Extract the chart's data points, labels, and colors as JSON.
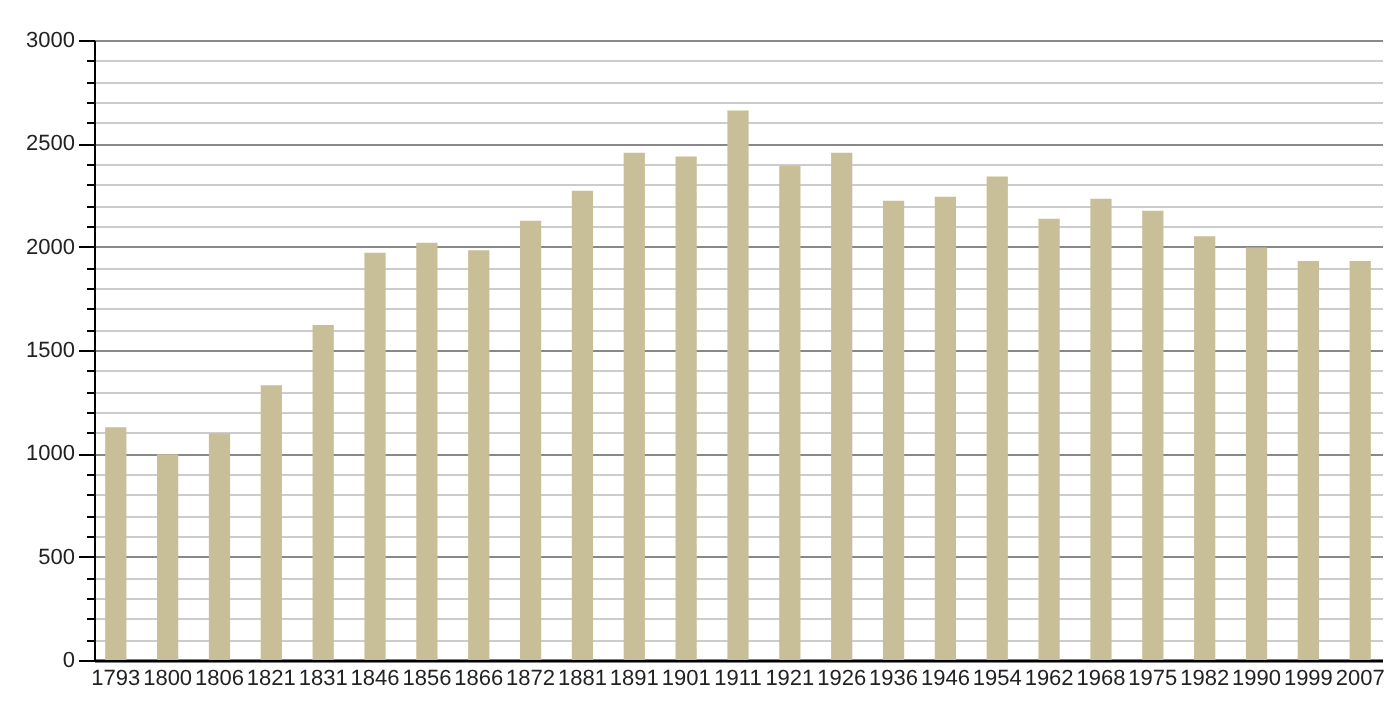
{
  "chart_data": {
    "type": "bar",
    "categories": [
      "1793",
      "1800",
      "1806",
      "1821",
      "1831",
      "1846",
      "1856",
      "1866",
      "1872",
      "1881",
      "1891",
      "1901",
      "1911",
      "1921",
      "1926",
      "1936",
      "1946",
      "1954",
      "1962",
      "1968",
      "1975",
      "1982",
      "1990",
      "1999",
      "2007"
    ],
    "values": [
      1126,
      995,
      1097,
      1330,
      1621,
      1970,
      2019,
      1983,
      2125,
      2271,
      2455,
      2436,
      2659,
      2391,
      2455,
      2222,
      2242,
      2339,
      2135,
      2232,
      2174,
      2051,
      1996,
      1931,
      1931
    ],
    "color": "#c8bf98",
    "ylim": [
      0,
      3000
    ],
    "yticks": [
      0,
      {
        "value": 100,
        "label": null
      },
      {
        "value": 200,
        "label": null
      },
      {
        "value": 300,
        "label": null
      },
      {
        "value": 400,
        "label": null
      },
      500,
      {
        "value": 600,
        "label": null
      },
      {
        "value": 700,
        "label": null
      },
      {
        "value": 800,
        "label": null
      },
      {
        "value": 900,
        "label": null
      },
      1000,
      {
        "value": 1100,
        "label": null
      },
      {
        "value": 1200,
        "label": null
      },
      {
        "value": 1300,
        "label": null
      },
      {
        "value": 1400,
        "label": null
      },
      1500,
      {
        "value": 1600,
        "label": null
      },
      {
        "value": 1700,
        "label": null
      },
      {
        "value": 1800,
        "label": null
      },
      {
        "value": 1900,
        "label": null
      },
      2000,
      {
        "value": 2100,
        "label": null
      },
      {
        "value": 2200,
        "label": null
      },
      {
        "value": 2300,
        "label": null
      },
      {
        "value": 2400,
        "label": null
      },
      2500,
      {
        "value": 2600,
        "label": null
      },
      {
        "value": 2700,
        "label": null
      },
      {
        "value": 2800,
        "label": null
      },
      {
        "value": 2900,
        "label": null
      },
      3000
    ],
    "grid": true
  }
}
